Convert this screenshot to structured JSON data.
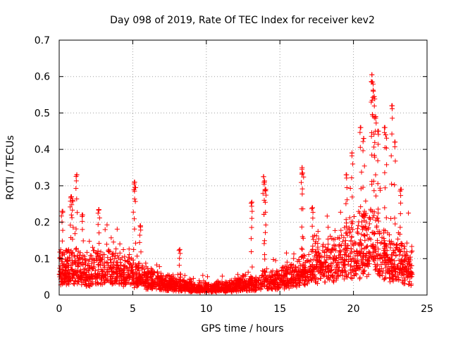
{
  "chart_data": {
    "type": "scatter",
    "title": "Day 098 of 2019, Rate Of TEC Index for receiver kev2",
    "xlabel": "GPS time / hours",
    "ylabel": "ROTI / TECUs",
    "xlim": [
      0,
      25
    ],
    "ylim": [
      0,
      0.7
    ],
    "xticks": [
      0,
      5,
      10,
      15,
      20,
      25
    ],
    "yticks": [
      0,
      0.1,
      0.2,
      0.3,
      0.4,
      0.5,
      0.6,
      0.7
    ],
    "xtick_labels": [
      "0",
      "5",
      "10",
      "15",
      "20",
      "25"
    ],
    "ytick_labels": [
      "0",
      "0.1",
      "0.2",
      "0.3",
      "0.4",
      "0.5",
      "0.6",
      "0.7"
    ],
    "grid": true,
    "marker": "+",
    "color": "#ff0000",
    "envelope": {
      "hours": [
        0,
        0.5,
        1,
        1.5,
        2,
        2.5,
        3,
        3.5,
        4,
        4.5,
        5,
        5.5,
        6,
        6.5,
        7,
        7.5,
        8,
        8.5,
        9,
        9.5,
        10,
        10.5,
        11,
        11.5,
        12,
        12.5,
        13,
        13.5,
        14,
        14.5,
        15,
        15.5,
        16,
        16.5,
        17,
        17.5,
        18,
        18.5,
        19,
        19.5,
        20,
        20.5,
        21,
        21.5,
        22,
        22.5,
        23,
        23.5,
        24
      ],
      "typical_roti": [
        0.07,
        0.07,
        0.07,
        0.06,
        0.06,
        0.07,
        0.07,
        0.07,
        0.07,
        0.06,
        0.06,
        0.05,
        0.04,
        0.04,
        0.03,
        0.03,
        0.03,
        0.025,
        0.02,
        0.02,
        0.02,
        0.02,
        0.02,
        0.02,
        0.025,
        0.03,
        0.03,
        0.03,
        0.04,
        0.04,
        0.04,
        0.045,
        0.05,
        0.06,
        0.08,
        0.09,
        0.08,
        0.09,
        0.1,
        0.11,
        0.12,
        0.12,
        0.14,
        0.13,
        0.12,
        0.1,
        0.09,
        0.08,
        0.07
      ]
    },
    "spikes": [
      {
        "x": 0.8,
        "y": 0.27
      },
      {
        "x": 0.9,
        "y": 0.26
      },
      {
        "x": 1.2,
        "y": 0.33
      },
      {
        "x": 0.2,
        "y": 0.23
      },
      {
        "x": 1.6,
        "y": 0.22
      },
      {
        "x": 2.7,
        "y": 0.235
      },
      {
        "x": 5.1,
        "y": 0.31
      },
      {
        "x": 5.15,
        "y": 0.295
      },
      {
        "x": 5.5,
        "y": 0.19
      },
      {
        "x": 8.2,
        "y": 0.125
      },
      {
        "x": 13.1,
        "y": 0.255
      },
      {
        "x": 13.9,
        "y": 0.325
      },
      {
        "x": 13.95,
        "y": 0.31
      },
      {
        "x": 14.0,
        "y": 0.29
      },
      {
        "x": 16.5,
        "y": 0.35
      },
      {
        "x": 16.55,
        "y": 0.335
      },
      {
        "x": 17.2,
        "y": 0.24
      },
      {
        "x": 19.5,
        "y": 0.33
      },
      {
        "x": 19.9,
        "y": 0.39
      },
      {
        "x": 20.5,
        "y": 0.46
      },
      {
        "x": 20.7,
        "y": 0.43
      },
      {
        "x": 21.25,
        "y": 0.605
      },
      {
        "x": 21.3,
        "y": 0.585
      },
      {
        "x": 21.35,
        "y": 0.56
      },
      {
        "x": 21.4,
        "y": 0.545
      },
      {
        "x": 21.5,
        "y": 0.49
      },
      {
        "x": 21.7,
        "y": 0.45
      },
      {
        "x": 22.1,
        "y": 0.46
      },
      {
        "x": 22.2,
        "y": 0.44
      },
      {
        "x": 22.6,
        "y": 0.52
      },
      {
        "x": 22.8,
        "y": 0.42
      },
      {
        "x": 23.2,
        "y": 0.29
      }
    ]
  }
}
